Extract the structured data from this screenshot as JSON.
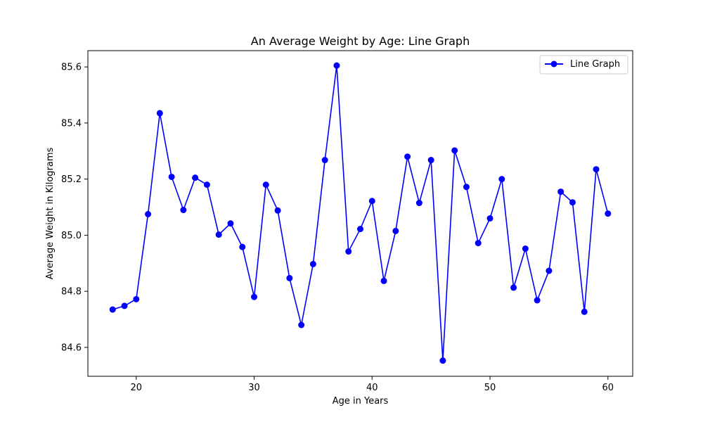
{
  "chart_data": {
    "type": "line",
    "title": "An Average Weight by Age: Line Graph",
    "xlabel": "Age in Years",
    "ylabel": "Average Weight in Kilograms",
    "xlim": [
      15.9,
      62.1
    ],
    "ylim": [
      84.497,
      85.658
    ],
    "xticks": [
      20,
      30,
      40,
      50,
      60
    ],
    "yticks": [
      84.6,
      84.8,
      85.0,
      85.2,
      85.4,
      85.6
    ],
    "grid": false,
    "legend_position": "top-right",
    "series": [
      {
        "name": "Line Graph",
        "color": "#0000ff",
        "marker": "circle",
        "x": [
          18,
          19,
          20,
          21,
          22,
          23,
          24,
          25,
          26,
          27,
          28,
          29,
          30,
          31,
          32,
          33,
          34,
          35,
          36,
          37,
          38,
          39,
          40,
          41,
          42,
          43,
          44,
          45,
          46,
          47,
          48,
          49,
          50,
          51,
          52,
          53,
          54,
          55,
          56,
          57,
          58,
          59,
          60
        ],
        "y": [
          84.735,
          84.748,
          84.772,
          85.075,
          85.435,
          85.208,
          85.09,
          85.205,
          85.18,
          85.002,
          85.042,
          84.958,
          84.78,
          85.18,
          85.088,
          84.847,
          84.68,
          84.897,
          85.268,
          85.605,
          84.942,
          85.022,
          85.122,
          84.837,
          85.015,
          85.28,
          85.115,
          85.268,
          84.553,
          85.302,
          85.172,
          84.972,
          85.06,
          85.2,
          84.813,
          84.952,
          84.768,
          84.873,
          85.155,
          85.117,
          84.727,
          85.235,
          85.077
        ]
      }
    ]
  }
}
